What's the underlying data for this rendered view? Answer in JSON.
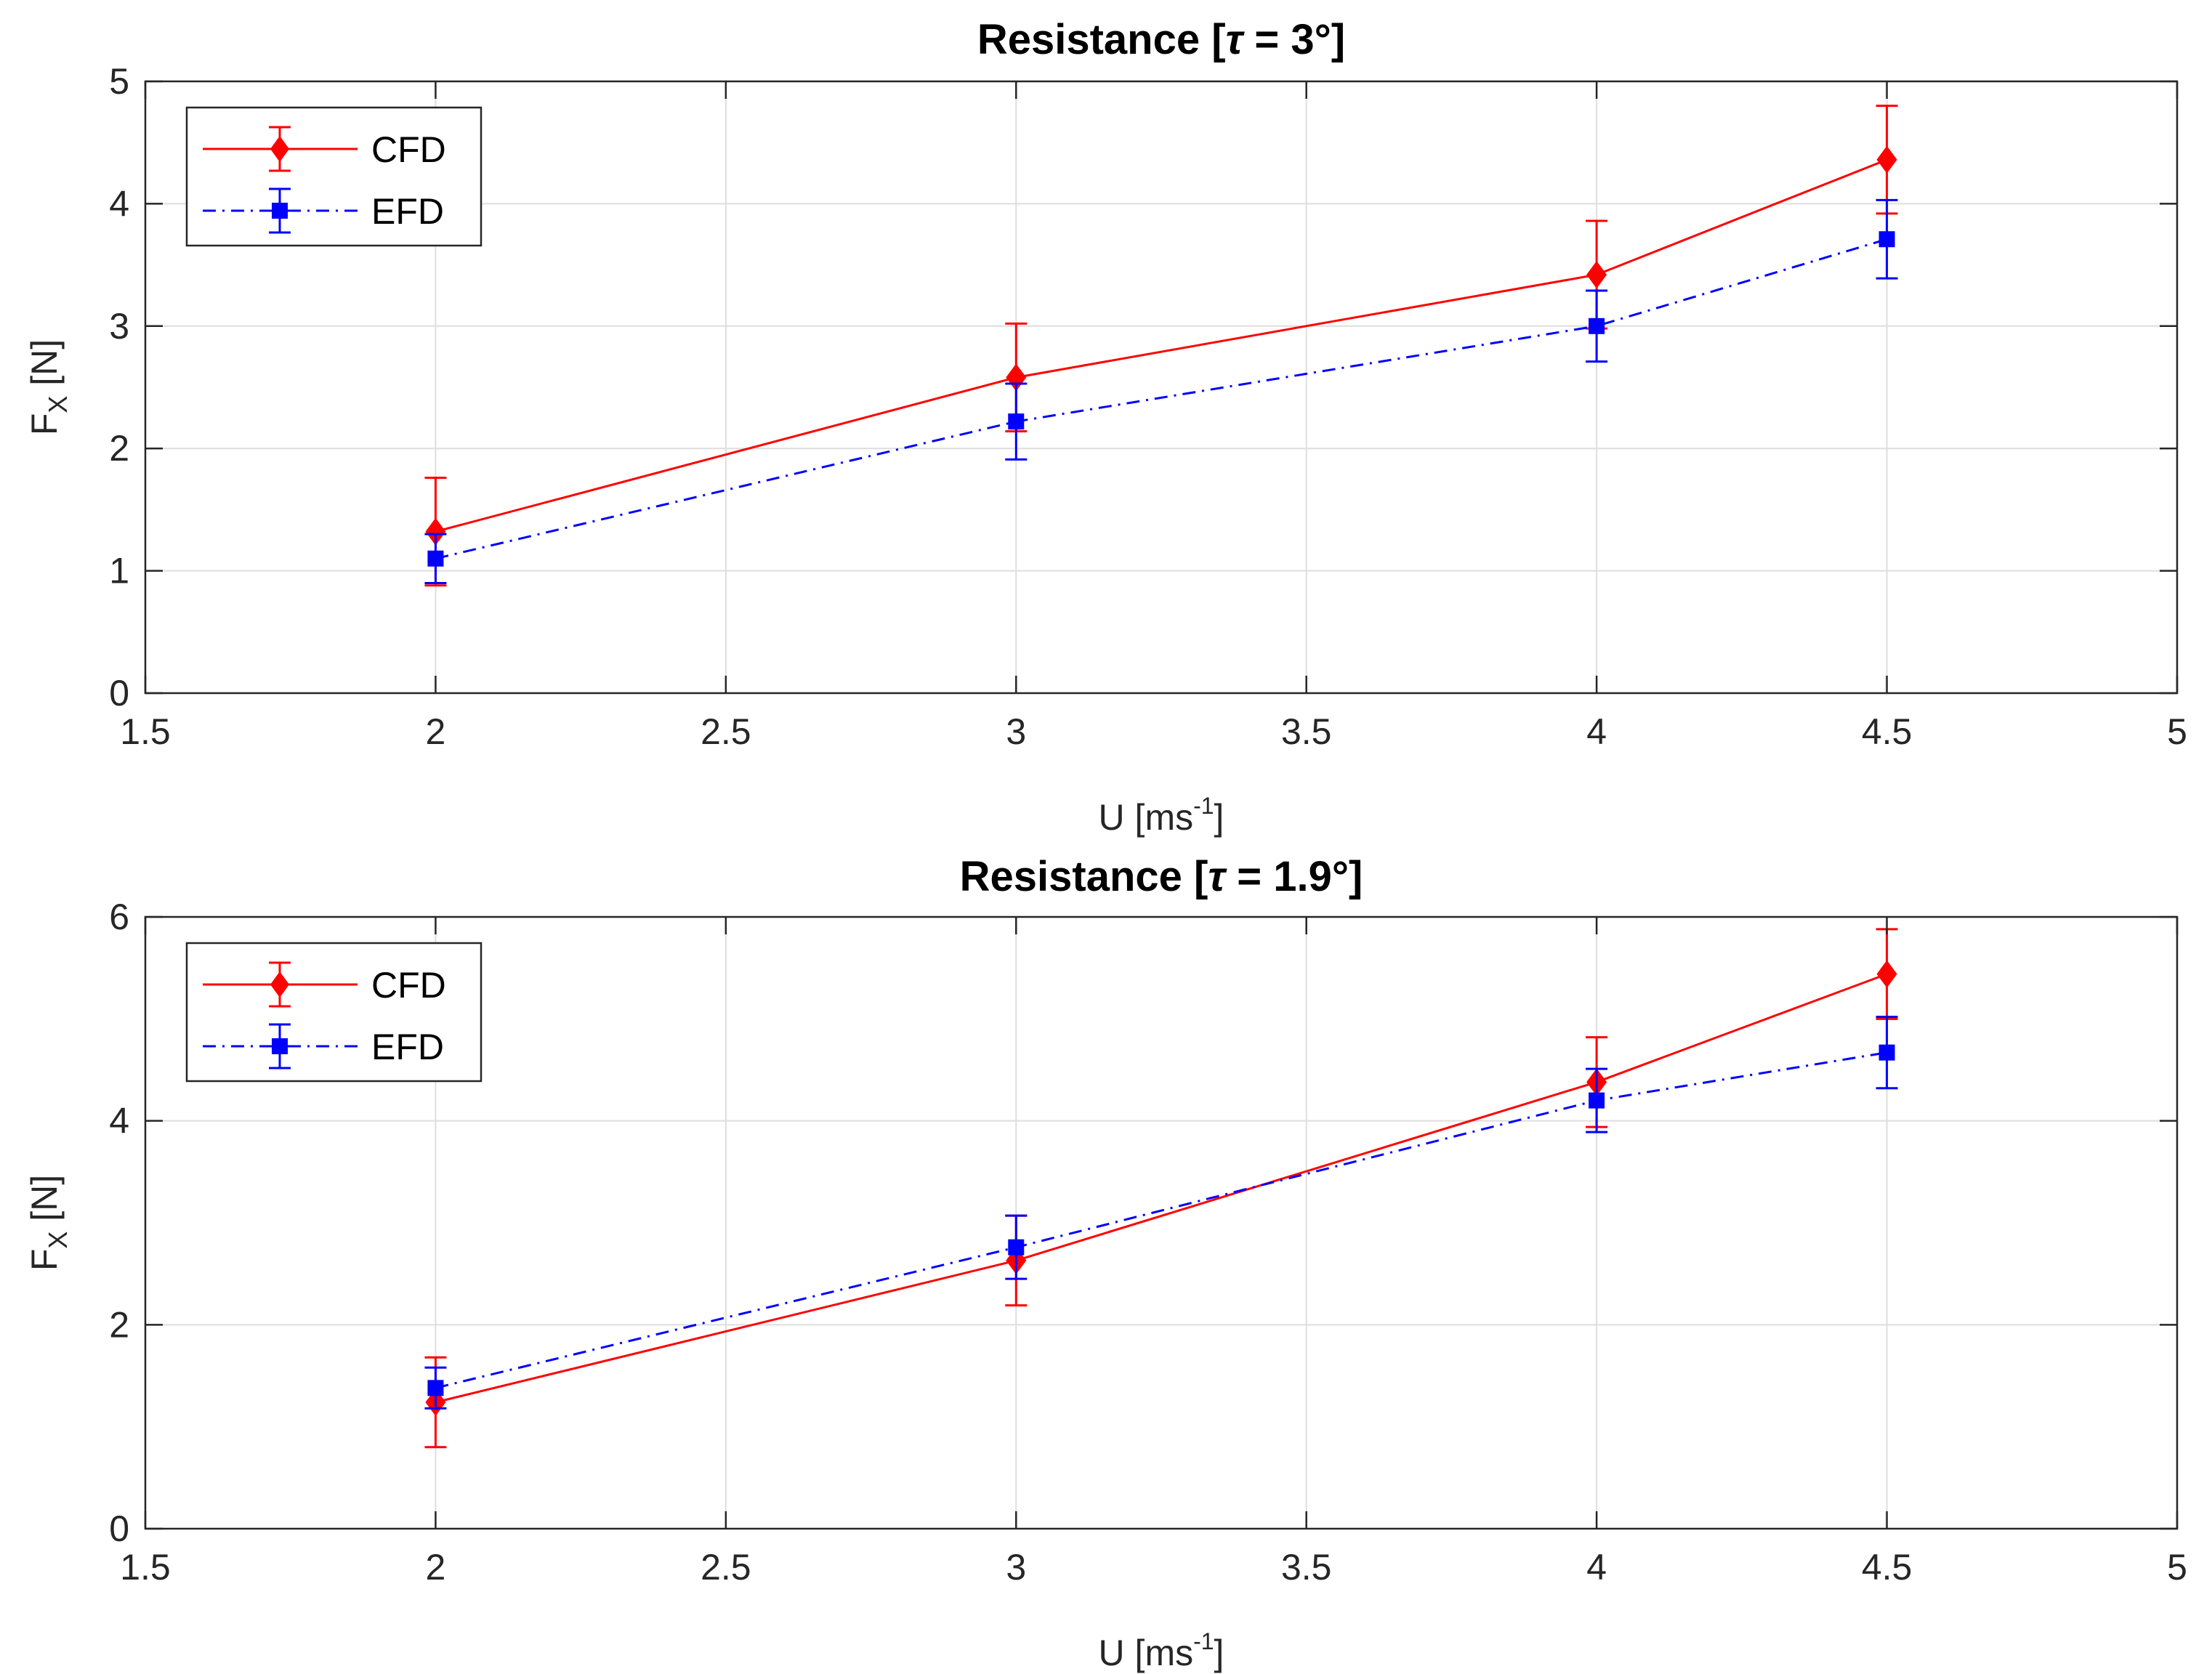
{
  "chart_data": [
    {
      "type": "line",
      "title_prefix": "Resistance [",
      "title_symbol": "τ",
      "title_suffix": " = 3°]",
      "xlabel_main": "U [ms",
      "xlabel_exp": "-1",
      "xlabel_close": "]",
      "ylabel_main": "F",
      "ylabel_sub": "X",
      "ylabel_unit": " [N]",
      "xlim": [
        1.5,
        5
      ],
      "ylim": [
        0,
        5
      ],
      "xticks": [
        "1.5",
        "2",
        "2.5",
        "3",
        "3.5",
        "4",
        "4.5",
        "5"
      ],
      "yticks": [
        "0",
        "1",
        "2",
        "3",
        "4",
        "5"
      ],
      "grid": true,
      "legend_position": "top-left",
      "series": [
        {
          "name": "CFD",
          "color": "#ff0000",
          "line_style": "solid",
          "marker": "diamond",
          "x": [
            2,
            3,
            4,
            4.5
          ],
          "y": [
            1.32,
            2.58,
            3.42,
            4.36
          ],
          "err_low": [
            0.44,
            0.44,
            0.44,
            0.44
          ],
          "err_high": [
            0.44,
            0.44,
            0.44,
            0.44
          ]
        },
        {
          "name": "EFD",
          "color": "#0000ff",
          "line_style": "dashdot",
          "marker": "square",
          "x": [
            2,
            3,
            4,
            4.5
          ],
          "y": [
            1.1,
            2.22,
            3.0,
            3.71
          ],
          "err_low": [
            0.2,
            0.31,
            0.29,
            0.32
          ],
          "err_high": [
            0.2,
            0.31,
            0.29,
            0.32
          ]
        }
      ]
    },
    {
      "type": "line",
      "title_prefix": "Resistance [",
      "title_symbol": "τ",
      "title_suffix": " = 1.9°]",
      "xlabel_main": "U [ms",
      "xlabel_exp": "-1",
      "xlabel_close": "]",
      "ylabel_main": "F",
      "ylabel_sub": "X",
      "ylabel_unit": " [N]",
      "xlim": [
        1.5,
        5
      ],
      "ylim": [
        0,
        6
      ],
      "xticks": [
        "1.5",
        "2",
        "2.5",
        "3",
        "3.5",
        "4",
        "4.5",
        "5"
      ],
      "yticks": [
        "0",
        "2",
        "4",
        "6"
      ],
      "ytick_values": [
        0,
        2,
        4,
        6
      ],
      "grid": true,
      "legend_position": "top-left",
      "series": [
        {
          "name": "CFD",
          "color": "#ff0000",
          "line_style": "solid",
          "marker": "diamond",
          "x": [
            2,
            3,
            4,
            4.5
          ],
          "y": [
            1.24,
            2.63,
            4.38,
            5.44
          ],
          "err_low": [
            0.44,
            0.44,
            0.44,
            0.44
          ],
          "err_high": [
            0.44,
            0.44,
            0.44,
            0.44
          ]
        },
        {
          "name": "EFD",
          "color": "#0000ff",
          "line_style": "dashdot",
          "marker": "square",
          "x": [
            2,
            3,
            4,
            4.5
          ],
          "y": [
            1.38,
            2.76,
            4.2,
            4.67
          ],
          "err_low": [
            0.2,
            0.31,
            0.31,
            0.35
          ],
          "err_high": [
            0.2,
            0.31,
            0.31,
            0.35
          ]
        }
      ]
    }
  ]
}
